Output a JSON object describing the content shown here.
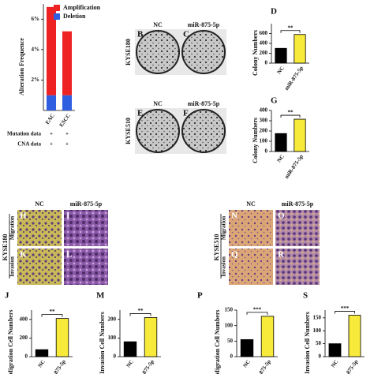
{
  "chart_data": [
    {
      "type": "bar",
      "stacked": true,
      "ylabel": "Alteration Frequence",
      "categories": [
        "EAC",
        "ESCC"
      ],
      "series": [
        {
          "name": "Deletion",
          "color": "#2f5ee0",
          "values": [
            1.0,
            1.0
          ]
        },
        {
          "name": "Amplification",
          "color": "#ee2222",
          "values": [
            5.8,
            4.2
          ]
        }
      ],
      "ylim": [
        0,
        7
      ],
      "yticks": [
        {
          "value": 2,
          "label": "2%"
        },
        {
          "value": 4,
          "label": "4%"
        },
        {
          "value": 6,
          "label": "6%"
        }
      ],
      "table_rows": [
        {
          "label": "Mutation data",
          "marks": [
            "+",
            "+"
          ]
        },
        {
          "label": "CNA data",
          "marks": [
            "+",
            "+"
          ]
        }
      ]
    },
    {
      "type": "bar",
      "panel": "D",
      "ylabel": "Colony Numbers",
      "categories": [
        "NC",
        "miR-875-5p"
      ],
      "values": [
        300,
        580
      ],
      "colors": [
        "#000000",
        "#f7ea3a"
      ],
      "ylim": [
        0,
        800
      ],
      "yticks": [
        0,
        200,
        400,
        600
      ],
      "annotation": "**"
    },
    {
      "type": "bar",
      "panel": "G",
      "ylabel": "Colony Numbers",
      "categories": [
        "NC",
        "miR-875-5p"
      ],
      "values": [
        175,
        315
      ],
      "colors": [
        "#000000",
        "#f7ea3a"
      ],
      "ylim": [
        0,
        400
      ],
      "yticks": [
        0,
        100,
        200,
        300,
        400
      ],
      "annotation": "**"
    },
    {
      "type": "bar",
      "panel": "J",
      "ylabel": "Migration Cell Numbers",
      "categories": [
        "NC",
        "miR-875-5p"
      ],
      "values": [
        75,
        410
      ],
      "colors": [
        "#000000",
        "#f7ea3a"
      ],
      "ylim": [
        0,
        500
      ],
      "yticks": [
        0,
        200,
        400
      ],
      "annotation": "**"
    },
    {
      "type": "bar",
      "panel": "M",
      "ylabel": "Invasion Cell Numbers",
      "categories": [
        "NC",
        "miR-875-5p"
      ],
      "values": [
        80,
        210
      ],
      "colors": [
        "#000000",
        "#f7ea3a"
      ],
      "ylim": [
        0,
        250
      ],
      "yticks": [
        0,
        100,
        200
      ],
      "annotation": "**"
    },
    {
      "type": "bar",
      "panel": "P",
      "ylabel": "Migration Cell Numbers",
      "categories": [
        "NC",
        "miR-875-5p"
      ],
      "values": [
        55,
        130
      ],
      "colors": [
        "#000000",
        "#f7ea3a"
      ],
      "ylim": [
        0,
        150
      ],
      "yticks": [
        0,
        50,
        100,
        150
      ],
      "annotation": "***"
    },
    {
      "type": "bar",
      "panel": "S",
      "ylabel": "Invasion Cell Numbers",
      "categories": [
        "NC",
        "miR-875-5p"
      ],
      "values": [
        50,
        160
      ],
      "colors": [
        "#000000",
        "#f7ea3a"
      ],
      "ylim": [
        0,
        180
      ],
      "yticks": [
        0,
        50,
        100,
        150
      ],
      "annotation": "***"
    }
  ],
  "plates": {
    "columns": [
      "NC",
      "miR-875-5p"
    ],
    "rows": [
      {
        "cell_line": "KYSE180",
        "panels": [
          "B",
          "C"
        ]
      },
      {
        "cell_line": "KYSE510",
        "panels": [
          "E",
          "F"
        ]
      }
    ]
  },
  "transwell": [
    {
      "cell_line": "KYSE180",
      "columns": [
        "NC",
        "miR-875-5p"
      ],
      "rows": [
        {
          "assay": "Migration",
          "panels": [
            "H",
            "I"
          ]
        },
        {
          "assay": "Invasion",
          "panels": [
            "K",
            "L"
          ]
        }
      ]
    },
    {
      "cell_line": "KYSE510",
      "columns": [
        "NC",
        "miR-875-5p"
      ],
      "rows": [
        {
          "assay": "Migration",
          "panels": [
            "N",
            "O"
          ]
        },
        {
          "assay": "Invasion",
          "panels": [
            "Q",
            "R"
          ]
        }
      ]
    }
  ]
}
